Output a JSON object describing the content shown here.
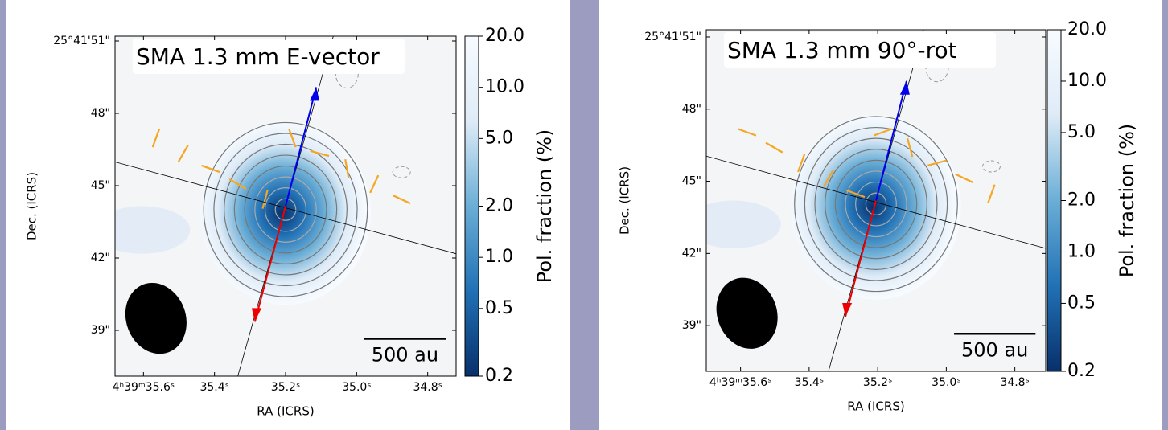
{
  "chart_data": [
    {
      "type": "image",
      "title": "SMA 1.3 mm E-vector",
      "xlabel": "RA (ICRS)",
      "ylabel": "Dec. (ICRS)",
      "xlim": [
        35.68,
        34.72
      ],
      "xticks": [
        {
          "value": 35.6,
          "label": "4ʰ39ᵐ35.6ˢ"
        },
        {
          "value": 35.4,
          "label": "35.4ˢ"
        },
        {
          "value": 35.2,
          "label": "35.2ˢ"
        },
        {
          "value": 35.0,
          "label": "35.0ˢ"
        },
        {
          "value": 34.8,
          "label": "34.8ˢ"
        }
      ],
      "ylim": [
        37.1,
        51.2
      ],
      "yticks": [
        {
          "value": 51,
          "label": "25°41'51\""
        },
        {
          "value": 48,
          "label": "48\""
        },
        {
          "value": 45,
          "label": "45\""
        },
        {
          "value": 42,
          "label": "42\""
        },
        {
          "value": 39,
          "label": "39\""
        }
      ],
      "colorbar": {
        "label": "Pol. fraction (%)",
        "log": true,
        "lim": [
          0.2,
          20
        ],
        "colors": [
          "#08306b",
          "#2171b5",
          "#6baed6",
          "#deebf7",
          "#f7fbff"
        ],
        "ticks": [
          {
            "value": 0.2,
            "label": "0.2"
          },
          {
            "value": 0.5,
            "label": "0.5"
          },
          {
            "value": 1,
            "label": "1.0"
          },
          {
            "value": 2,
            "label": "2.0"
          },
          {
            "value": 5,
            "label": "5.0"
          },
          {
            "value": 10,
            "label": "10.0"
          },
          {
            "value": 20,
            "label": "20.0"
          }
        ]
      },
      "scalebar_label": "500 au"
    },
    {
      "type": "image",
      "title": "SMA 1.3 mm 90°-rot",
      "xlabel": "RA (ICRS)",
      "ylabel": "Dec. (ICRS)",
      "xlim": [
        35.7,
        34.71
      ],
      "xticks": [
        {
          "value": 35.6,
          "label": "4ʰ39ᵐ35.6ˢ"
        },
        {
          "value": 35.4,
          "label": "35.4ˢ"
        },
        {
          "value": 35.2,
          "label": "35.2ˢ"
        },
        {
          "value": 35.0,
          "label": "35.0ˢ"
        },
        {
          "value": 34.8,
          "label": "34.8ˢ"
        }
      ],
      "ylim": [
        37.1,
        51.3
      ],
      "yticks": [
        {
          "value": 51,
          "label": "25°41'51\""
        },
        {
          "value": 48,
          "label": "48\""
        },
        {
          "value": 45,
          "label": "45\""
        },
        {
          "value": 42,
          "label": "42\""
        },
        {
          "value": 39,
          "label": "39\""
        }
      ],
      "colorbar": {
        "label": "Pol. fraction (%)",
        "log": true,
        "lim": [
          0.2,
          20
        ],
        "colors": [
          "#08306b",
          "#2171b5",
          "#6baed6",
          "#deebf7",
          "#f7fbff"
        ],
        "ticks": [
          {
            "value": 0.2,
            "label": "0.2"
          },
          {
            "value": 0.5,
            "label": "0.5"
          },
          {
            "value": 1,
            "label": "1.0"
          },
          {
            "value": 2,
            "label": "2.0"
          },
          {
            "value": 5,
            "label": "5.0"
          },
          {
            "value": 10,
            "label": "10.0"
          },
          {
            "value": 20,
            "label": "20.0"
          }
        ]
      },
      "scalebar_label": "500 au"
    }
  ]
}
